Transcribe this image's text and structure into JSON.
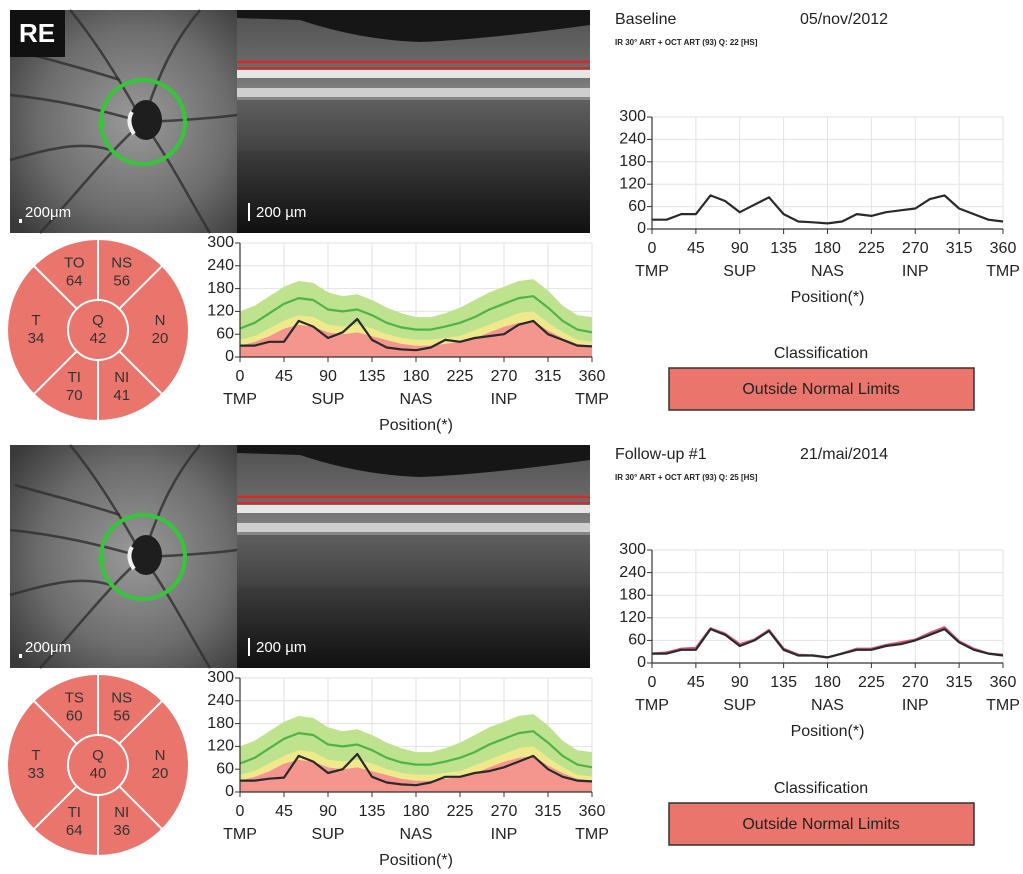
{
  "label": "RE",
  "panels": [
    {
      "title": "Baseline",
      "date": "05/nov/2012",
      "scan_info": "IR 30° ART + OCT ART (93) Q: 22 [HS]",
      "fundus_scale": "200μm",
      "oct_scale": "200 µm",
      "color": "#e9756d",
      "sectors": [
        {
          "label": "TO",
          "value": 64
        },
        {
          "label": "NS",
          "value": 56
        },
        {
          "label": "T",
          "value": 34
        },
        {
          "label": "Q",
          "value": 42
        },
        {
          "label": "N",
          "value": 20
        },
        {
          "label": "TI",
          "value": 70
        },
        {
          "label": "NI",
          "value": 41
        }
      ],
      "classification_title": "Classification",
      "classification": "Outside Normal Limits"
    },
    {
      "title": "Follow-up #1",
      "date": "21/mai/2014",
      "scan_info": "IR 30° ART + OCT ART (93) Q: 25 [HS]",
      "fundus_scale": "200μm",
      "oct_scale": "200 µm",
      "color": "#e9756d",
      "sectors": [
        {
          "label": "TS",
          "value": 60
        },
        {
          "label": "NS",
          "value": 56
        },
        {
          "label": "T",
          "value": 33
        },
        {
          "label": "Q",
          "value": 40
        },
        {
          "label": "N",
          "value": 20
        },
        {
          "label": "TI",
          "value": 64
        },
        {
          "label": "NI",
          "value": 36
        }
      ],
      "classification_title": "Classification",
      "classification": "Outside Normal Limits"
    }
  ],
  "chart_data": [
    {
      "type": "line",
      "xlabel": "Position(*)",
      "grid": true,
      "x": [
        0,
        15,
        30,
        45,
        60,
        75,
        90,
        105,
        120,
        135,
        150,
        165,
        180,
        195,
        210,
        225,
        240,
        255,
        270,
        285,
        300,
        315,
        330,
        345,
        360
      ],
      "xlim": [
        0,
        360
      ],
      "xticks": [
        0,
        45,
        90,
        135,
        180,
        225,
        270,
        315,
        360
      ],
      "ylim": [
        0,
        300
      ],
      "yticks": [
        0,
        60,
        120,
        180,
        240,
        300
      ],
      "region_labels": [
        {
          "value": 0,
          "label": "TMP"
        },
        {
          "value": 90,
          "label": "SUP"
        },
        {
          "value": 180,
          "label": "NAS"
        },
        {
          "value": 270,
          "label": "INP"
        },
        {
          "value": 360,
          "label": "TMP"
        }
      ],
      "series": [
        {
          "color": "#f4958e",
          "fill": "area",
          "values": [
            30,
            40,
            55,
            75,
            85,
            80,
            65,
            60,
            65,
            55,
            45,
            35,
            30,
            30,
            35,
            40,
            50,
            65,
            80,
            90,
            95,
            70,
            50,
            35,
            30
          ]
        },
        {
          "color": "#efe98a",
          "fill": "band",
          "values": [
            45,
            55,
            75,
            95,
            110,
            105,
            85,
            80,
            85,
            75,
            60,
            50,
            45,
            45,
            50,
            55,
            70,
            85,
            100,
            115,
            120,
            90,
            65,
            45,
            40
          ]
        },
        {
          "color": "#bfe28e",
          "fill": "band",
          "values": [
            120,
            135,
            160,
            185,
            200,
            195,
            170,
            160,
            165,
            150,
            130,
            115,
            105,
            105,
            115,
            130,
            150,
            170,
            185,
            200,
            205,
            175,
            135,
            110,
            105
          ]
        },
        {
          "color": "#4fb447",
          "values": [
            75,
            90,
            115,
            140,
            155,
            150,
            125,
            120,
            125,
            110,
            90,
            78,
            72,
            72,
            80,
            90,
            105,
            125,
            140,
            155,
            160,
            130,
            95,
            72,
            65
          ]
        },
        {
          "color": "#2a2a2a",
          "values": [
            30,
            30,
            40,
            40,
            95,
            80,
            50,
            65,
            100,
            45,
            25,
            20,
            18,
            25,
            45,
            40,
            50,
            55,
            60,
            85,
            95,
            60,
            45,
            30,
            28
          ]
        }
      ]
    },
    {
      "type": "line",
      "xlabel": "Position(*)",
      "grid": true,
      "x": [
        0,
        15,
        30,
        45,
        60,
        75,
        90,
        105,
        120,
        135,
        150,
        165,
        180,
        195,
        210,
        225,
        240,
        255,
        270,
        285,
        300,
        315,
        330,
        345,
        360
      ],
      "xlim": [
        0,
        360
      ],
      "xticks": [
        0,
        45,
        90,
        135,
        180,
        225,
        270,
        315,
        360
      ],
      "ylim": [
        0,
        300
      ],
      "yticks": [
        0,
        60,
        120,
        180,
        240,
        300
      ],
      "region_labels": [
        {
          "value": 0,
          "label": "TMP"
        },
        {
          "value": 90,
          "label": "SUP"
        },
        {
          "value": 180,
          "label": "NAS"
        },
        {
          "value": 270,
          "label": "INP"
        },
        {
          "value": 360,
          "label": "TMP"
        }
      ],
      "series": [
        {
          "color": "#2a2a2a",
          "values": [
            25,
            25,
            40,
            40,
            90,
            75,
            45,
            65,
            85,
            40,
            20,
            18,
            15,
            20,
            40,
            35,
            45,
            50,
            55,
            80,
            90,
            55,
            40,
            25,
            20
          ]
        }
      ]
    },
    {
      "type": "line",
      "xlabel": "Position(*)",
      "grid": true,
      "x": [
        0,
        15,
        30,
        45,
        60,
        75,
        90,
        105,
        120,
        135,
        150,
        165,
        180,
        195,
        210,
        225,
        240,
        255,
        270,
        285,
        300,
        315,
        330,
        345,
        360
      ],
      "xlim": [
        0,
        360
      ],
      "xticks": [
        0,
        45,
        90,
        135,
        180,
        225,
        270,
        315,
        360
      ],
      "ylim": [
        0,
        300
      ],
      "yticks": [
        0,
        60,
        120,
        180,
        240,
        300
      ],
      "region_labels": [
        {
          "value": 0,
          "label": "TMP"
        },
        {
          "value": 90,
          "label": "SUP"
        },
        {
          "value": 180,
          "label": "NAS"
        },
        {
          "value": 270,
          "label": "INP"
        },
        {
          "value": 360,
          "label": "TMP"
        }
      ],
      "series": [
        {
          "color": "#f4958e",
          "fill": "area",
          "values": [
            30,
            40,
            55,
            75,
            85,
            80,
            65,
            60,
            65,
            55,
            45,
            35,
            30,
            30,
            35,
            40,
            50,
            65,
            80,
            90,
            95,
            70,
            50,
            35,
            30
          ]
        },
        {
          "color": "#efe98a",
          "fill": "band",
          "values": [
            45,
            55,
            75,
            95,
            110,
            105,
            85,
            80,
            85,
            75,
            60,
            50,
            45,
            45,
            50,
            55,
            70,
            85,
            100,
            115,
            120,
            90,
            65,
            45,
            40
          ]
        },
        {
          "color": "#bfe28e",
          "fill": "band",
          "values": [
            120,
            135,
            160,
            185,
            200,
            195,
            170,
            160,
            165,
            150,
            130,
            115,
            105,
            105,
            115,
            130,
            150,
            170,
            185,
            200,
            205,
            175,
            135,
            110,
            105
          ]
        },
        {
          "color": "#4fb447",
          "values": [
            75,
            90,
            115,
            140,
            155,
            150,
            125,
            120,
            125,
            110,
            90,
            78,
            72,
            72,
            80,
            90,
            105,
            125,
            140,
            155,
            160,
            130,
            95,
            72,
            65
          ]
        },
        {
          "color": "#2a2a2a",
          "values": [
            30,
            30,
            35,
            38,
            95,
            80,
            50,
            60,
            100,
            40,
            25,
            20,
            18,
            25,
            40,
            40,
            50,
            55,
            65,
            80,
            95,
            60,
            40,
            30,
            28
          ]
        }
      ]
    },
    {
      "type": "line",
      "xlabel": "Position(*)",
      "grid": true,
      "x": [
        0,
        15,
        30,
        45,
        60,
        75,
        90,
        105,
        120,
        135,
        150,
        165,
        180,
        195,
        210,
        225,
        240,
        255,
        270,
        285,
        300,
        315,
        330,
        345,
        360
      ],
      "xlim": [
        0,
        360
      ],
      "xticks": [
        0,
        45,
        90,
        135,
        180,
        225,
        270,
        315,
        360
      ],
      "ylim": [
        0,
        300
      ],
      "yticks": [
        0,
        60,
        120,
        180,
        240,
        300
      ],
      "region_labels": [
        {
          "value": 0,
          "label": "TMP"
        },
        {
          "value": 90,
          "label": "SUP"
        },
        {
          "value": 180,
          "label": "NAS"
        },
        {
          "value": 270,
          "label": "INP"
        },
        {
          "value": 360,
          "label": "TMP"
        }
      ],
      "series": [
        {
          "color": "#d65a7a",
          "values": [
            25,
            28,
            38,
            40,
            92,
            78,
            50,
            62,
            88,
            38,
            22,
            20,
            15,
            25,
            38,
            38,
            48,
            55,
            62,
            80,
            95,
            58,
            38,
            25,
            22
          ]
        },
        {
          "color": "#2a2a2a",
          "values": [
            25,
            25,
            35,
            35,
            90,
            75,
            45,
            60,
            85,
            35,
            20,
            20,
            15,
            25,
            35,
            35,
            45,
            50,
            60,
            75,
            90,
            55,
            35,
            25,
            20
          ]
        }
      ]
    }
  ]
}
